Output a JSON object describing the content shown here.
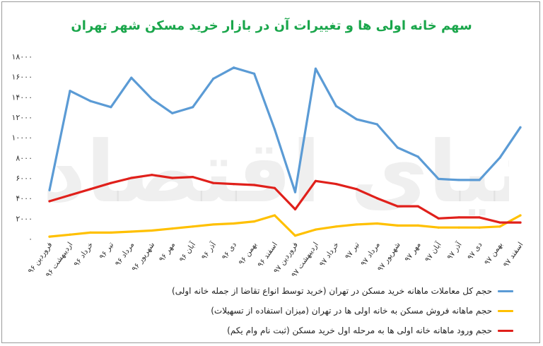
{
  "chart_data": {
    "type": "line",
    "title": "سهم خانه اولی ها و تغییرات آن در بازار خرید مسکن شهر تهران",
    "watermark": "دنیای اقتصاد",
    "categories": [
      "فروردین ۹۶",
      "اردیبهشت ۹۶",
      "خرداد ۹۶",
      "تیر ۹۶",
      "مرداد ۹۶",
      "شهریور ۹۶",
      "مهر ۹۶",
      "آبان ۹۶",
      "آذر ۹۶",
      "دی ۹۶",
      "بهمن ۹۶",
      "اسفند ۹۶",
      "فروردین ۹۷",
      "اردیبهشت ۹۷",
      "خرداد ۹۷",
      "تیر ۹۷",
      "مرداد ۹۷",
      "شهریور ۹۷",
      "مهر ۹۷",
      "آبان ۹۷",
      "آذر ۹۷",
      "دی ۹۷",
      "بهمن ۹۷",
      "اسفند ۹۷"
    ],
    "y_ticks": [
      "۰",
      "۲۰۰۰",
      "۴۰۰۰",
      "۶۰۰۰",
      "۸۰۰۰",
      "۱۰۰۰۰",
      "۱۲۰۰۰",
      "۱۴۰۰۰",
      "۱۶۰۰۰",
      "۱۸۰۰۰"
    ],
    "ylim": [
      0,
      18000
    ],
    "grid": false,
    "legend_position": "bottom",
    "series": [
      {
        "name": "حجم کل معاملات ماهانه خرید مسکن در تهران (خرید توسط انواع تقاضا از جمله خانه اولی)",
        "color": "#5b9bd5",
        "values": [
          4800,
          14600,
          13600,
          13000,
          15900,
          13800,
          12400,
          13000,
          15800,
          16900,
          16300,
          10800,
          4600,
          16800,
          13100,
          11800,
          11300,
          9000,
          8100,
          5900,
          5800,
          5800,
          8000,
          11000
        ]
      },
      {
        "name": "حجم ماهانه فروش مسکن به خانه اولی ها در تهران (میزان استفاده از تسهیلات)",
        "color": "#ffc000",
        "values": [
          200,
          400,
          600,
          600,
          700,
          800,
          1000,
          1200,
          1400,
          1500,
          1700,
          2300,
          300,
          900,
          1200,
          1400,
          1500,
          1300,
          1300,
          1100,
          1100,
          1100,
          1200,
          2300
        ]
      },
      {
        "name": "حجم ورود ماهانه خانه اولی ها به مرحله اول خرید مسکن (ثبت نام وام یکم)",
        "color": "#e0201b",
        "values": [
          3700,
          4300,
          4900,
          5500,
          6000,
          6300,
          6000,
          6100,
          5500,
          5400,
          5300,
          5000,
          2900,
          5700,
          5400,
          4900,
          4000,
          3200,
          3200,
          2000,
          2100,
          2100,
          1600,
          1600
        ]
      }
    ]
  }
}
